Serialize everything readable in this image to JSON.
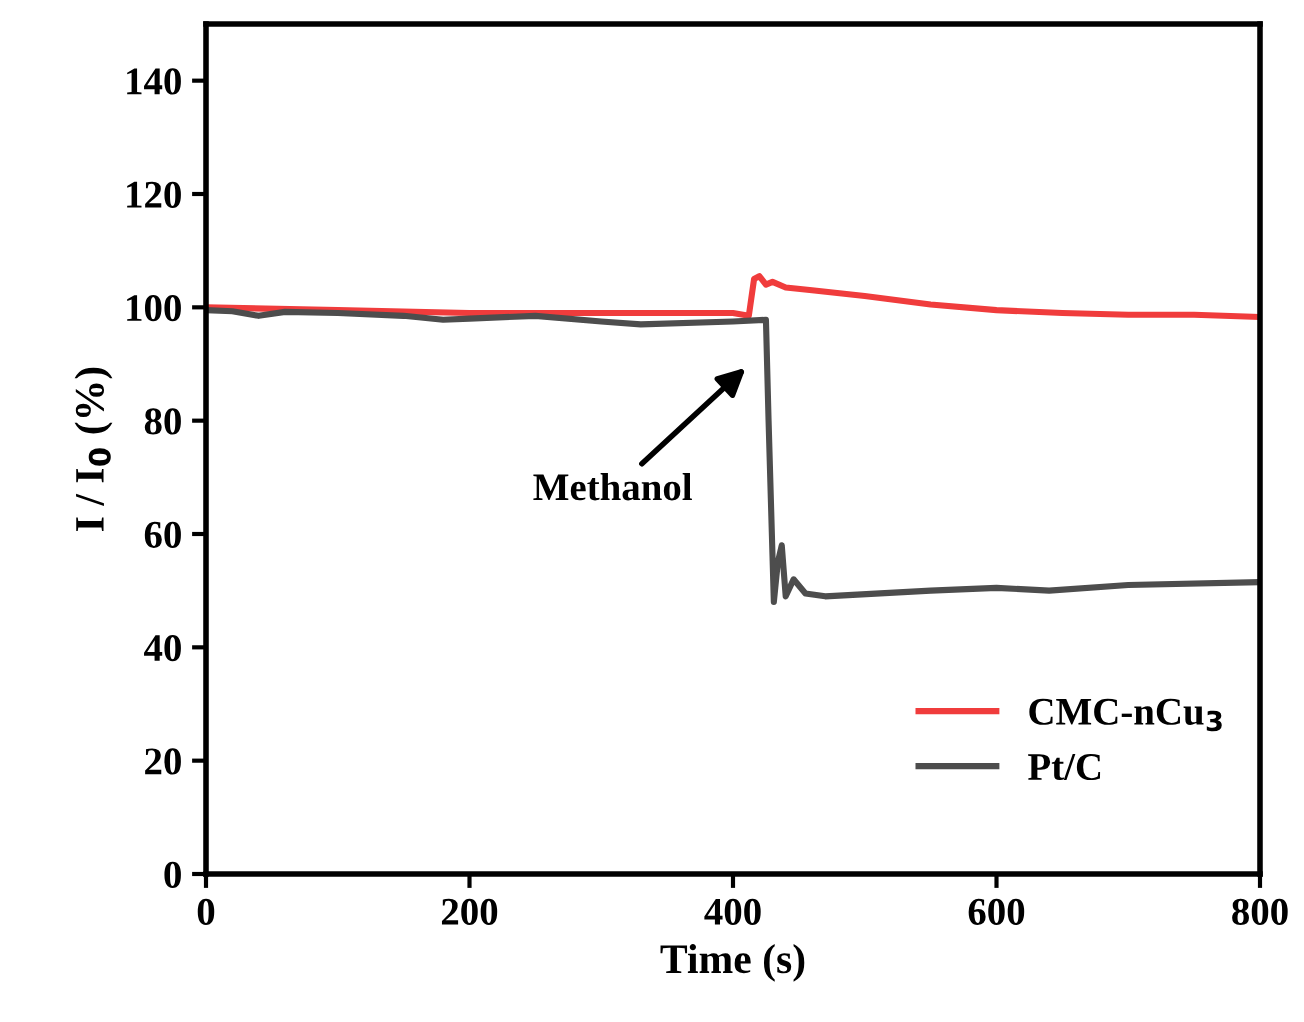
{
  "chart_data": {
    "type": "line",
    "xlabel": "Time (s)",
    "ylabel": "I / I$_{0}$ (%)",
    "xlim": [
      0,
      800
    ],
    "ylim": [
      0,
      150
    ],
    "xticks": [
      0,
      200,
      400,
      600,
      800
    ],
    "yticks": [
      0,
      20,
      40,
      60,
      80,
      100,
      120,
      140
    ],
    "grid": false,
    "legend": "bottom right",
    "marker": "none",
    "line_style": "solid",
    "series": [
      {
        "name": "CMC-nCu$_{3}$",
        "color": "#f03c3c",
        "x": [
          0,
          100,
          200,
          300,
          400,
          412,
          416,
          420,
          425,
          430,
          440,
          460,
          500,
          550,
          600,
          650,
          700,
          750,
          800
        ],
        "values": [
          100,
          99.5,
          99,
          99,
          99,
          98.5,
          105,
          105.5,
          104,
          104.5,
          103.5,
          103,
          102,
          100.5,
          99.5,
          99,
          98.7,
          98.7,
          98.3
        ]
      },
      {
        "name": "Pt/C",
        "color": "#4d4d4d",
        "x": [
          0,
          20,
          40,
          60,
          100,
          150,
          180,
          200,
          250,
          300,
          330,
          400,
          425,
          427,
          431,
          434,
          437,
          440,
          446,
          455,
          470,
          550,
          600,
          640,
          700,
          800
        ],
        "values": [
          99.5,
          99.3,
          98.5,
          99.2,
          99,
          98.5,
          97.8,
          98,
          98.5,
          97.5,
          97,
          97.5,
          97.8,
          80,
          48,
          55,
          58,
          49,
          52,
          49.5,
          49,
          50,
          50.5,
          50,
          51,
          51.5
        ]
      }
    ],
    "annotations": [
      "Methanol"
    ]
  }
}
